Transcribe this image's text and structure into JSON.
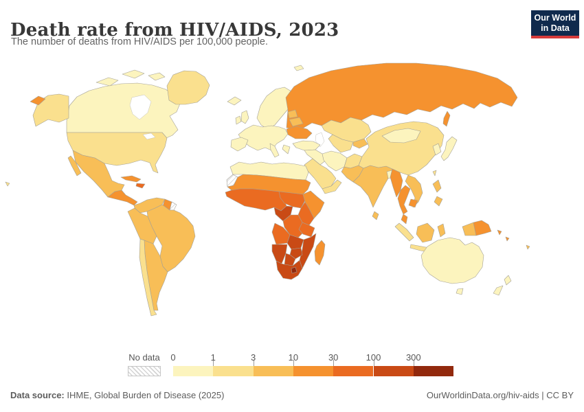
{
  "header": {
    "title": "Death rate from HIV/AIDS, 2023",
    "subtitle": "The number of deaths from HIV/AIDS per 100,000 people."
  },
  "logo": {
    "line1": "Our World",
    "line2": "in Data",
    "bg_color": "#102a4d",
    "accent_color": "#d73b3b"
  },
  "footer": {
    "source_label": "Data source:",
    "source_text": " IHME, Global Burden of Disease (2025)",
    "credit": "OurWorldinData.org/hiv-aids | CC BY"
  },
  "chart_data": {
    "type": "choropleth_map",
    "title": "Death rate from HIV/AIDS, 2023",
    "unit": "deaths from HIV/AIDS per 100,000 people",
    "year": 2023,
    "legend": {
      "no_data_label": "No data",
      "ticks": [
        "0",
        "1",
        "3",
        "10",
        "30",
        "100",
        "300"
      ],
      "tick_values": [
        0,
        1,
        3,
        10,
        30,
        100,
        300
      ],
      "scale": "log-binned, open-ended above 300",
      "colors": [
        "#FCF4BE",
        "#FAE08E",
        "#F8BE57",
        "#F5922F",
        "#EA6B21",
        "#C94A15",
        "#92290D"
      ],
      "no_data_pattern": "gray diagonal hatch"
    },
    "bin_meaning": [
      "0-1",
      "1-3",
      "3-10",
      "10-30",
      "30-100",
      "100-300",
      "300+"
    ],
    "regions": [
      {
        "id": "canada",
        "name": "Canada",
        "bin": 0
      },
      {
        "id": "arctic-islands",
        "name": "Canadian Arctic Archipelago",
        "bin": 0
      },
      {
        "id": "alaska",
        "name": "United States (Alaska)",
        "bin": 1
      },
      {
        "id": "usa",
        "name": "United States",
        "bin": 1
      },
      {
        "id": "hawaii",
        "name": "United States (Hawaii)",
        "bin": 1
      },
      {
        "id": "greenland",
        "name": "Greenland",
        "bin": 1
      },
      {
        "id": "chukotka",
        "name": "Russia (far east)",
        "bin": 3
      },
      {
        "id": "sakhalin",
        "name": "Russia (Sakhalin)",
        "bin": 3
      },
      {
        "id": "mexico",
        "name": "Mexico",
        "bin": 2
      },
      {
        "id": "central-america",
        "name": "Central America",
        "bin": 3
      },
      {
        "id": "cuba",
        "name": "Cuba",
        "bin": 3
      },
      {
        "id": "hispaniola",
        "name": "Haiti / Dominican Republic",
        "bin": 4
      },
      {
        "id": "colombia-venezuela",
        "name": "Colombia / Venezuela",
        "bin": 2
      },
      {
        "id": "guyanas",
        "name": "Guyana / Suriname",
        "bin": 3
      },
      {
        "id": "french-guiana",
        "name": "French Guiana",
        "bin": null
      },
      {
        "id": "brazil",
        "name": "Brazil",
        "bin": 2
      },
      {
        "id": "peru-bolivia",
        "name": "Ecuador / Peru / Bolivia",
        "bin": 2
      },
      {
        "id": "chile",
        "name": "Chile",
        "bin": 1
      },
      {
        "id": "argentina",
        "name": "Argentina",
        "bin": 2
      },
      {
        "id": "iceland",
        "name": "Iceland",
        "bin": 0
      },
      {
        "id": "uk",
        "name": "United Kingdom",
        "bin": 0
      },
      {
        "id": "ireland",
        "name": "Ireland",
        "bin": 0
      },
      {
        "id": "scandinavia",
        "name": "Scandinavia",
        "bin": 0
      },
      {
        "id": "svalbard",
        "name": "Svalbard",
        "bin": 0
      },
      {
        "id": "europe",
        "name": "Western & Central Europe",
        "bin": 0
      },
      {
        "id": "iberia",
        "name": "Spain / Portugal",
        "bin": 0
      },
      {
        "id": "italy",
        "name": "Italy",
        "bin": 0
      },
      {
        "id": "greece",
        "name": "Greece / Balkans",
        "bin": 0
      },
      {
        "id": "baltics",
        "name": "Baltic states",
        "bin": 2
      },
      {
        "id": "belarus",
        "name": "Belarus",
        "bin": 2
      },
      {
        "id": "ukraine",
        "name": "Ukraine",
        "bin": 3
      },
      {
        "id": "russia",
        "name": "Russia",
        "bin": 3
      },
      {
        "id": "kazakhstan",
        "name": "Kazakhstan",
        "bin": 1
      },
      {
        "id": "central-asia",
        "name": "Uzbekistan / Turkmenistan",
        "bin": 1
      },
      {
        "id": "tajikistan",
        "name": "Tajikistan / Kyrgyzstan",
        "bin": 2
      },
      {
        "id": "turkey",
        "name": "Turkey",
        "bin": 0
      },
      {
        "id": "syria-iraq",
        "name": "Syria / Iraq",
        "bin": 0
      },
      {
        "id": "iran",
        "name": "Iran",
        "bin": 0
      },
      {
        "id": "saudi",
        "name": "Saudi Arabia",
        "bin": 1
      },
      {
        "id": "yemen-oman",
        "name": "Yemen / Oman",
        "bin": 1
      },
      {
        "id": "afghanistan",
        "name": "Afghanistan",
        "bin": 1
      },
      {
        "id": "pakistan",
        "name": "Pakistan",
        "bin": 2
      },
      {
        "id": "india",
        "name": "India",
        "bin": 2
      },
      {
        "id": "bangladesh",
        "name": "Bangladesh",
        "bin": 0
      },
      {
        "id": "sri-lanka",
        "name": "Sri Lanka",
        "bin": 2
      },
      {
        "id": "china",
        "name": "China",
        "bin": 1
      },
      {
        "id": "mongolia",
        "name": "Mongolia",
        "bin": 0
      },
      {
        "id": "korea",
        "name": "South Korea",
        "bin": 0
      },
      {
        "id": "japan",
        "name": "Japan",
        "bin": 0
      },
      {
        "id": "taiwan",
        "name": "Taiwan",
        "bin": 1
      },
      {
        "id": "myanmar",
        "name": "Myanmar",
        "bin": 3
      },
      {
        "id": "thailand",
        "name": "Thailand",
        "bin": 3
      },
      {
        "id": "laos-vietnam",
        "name": "Laos / Vietnam",
        "bin": 2
      },
      {
        "id": "cambodia",
        "name": "Cambodia",
        "bin": 3
      },
      {
        "id": "malaysia",
        "name": "Malaysia (peninsular)",
        "bin": 3
      },
      {
        "id": "sumatra",
        "name": "Indonesia (Sumatra)",
        "bin": 1
      },
      {
        "id": "java",
        "name": "Indonesia (Java)",
        "bin": 1
      },
      {
        "id": "borneo",
        "name": "Borneo",
        "bin": 2
      },
      {
        "id": "sulawesi",
        "name": "Indonesia (Sulawesi)",
        "bin": 2
      },
      {
        "id": "philippines",
        "name": "Philippines",
        "bin": 2
      },
      {
        "id": "papua-indonesia",
        "name": "Indonesia (Papua)",
        "bin": 2
      },
      {
        "id": "png",
        "name": "Papua New Guinea",
        "bin": 3
      },
      {
        "id": "solomons",
        "name": "Solomon Islands",
        "bin": 3
      },
      {
        "id": "fiji",
        "name": "Fiji",
        "bin": 2
      },
      {
        "id": "australia",
        "name": "Australia",
        "bin": 0
      },
      {
        "id": "tasmania",
        "name": "Australia (Tasmania)",
        "bin": 0
      },
      {
        "id": "new-zealand",
        "name": "New Zealand",
        "bin": 0
      },
      {
        "id": "north-africa",
        "name": "Morocco / Algeria / Libya / Egypt",
        "bin": 0
      },
      {
        "id": "western-sahara",
        "name": "Western Sahara",
        "bin": null
      },
      {
        "id": "sahel",
        "name": "Mauritania / Mali / Niger / Chad / Sudan",
        "bin": 3
      },
      {
        "id": "west-africa",
        "name": "West Africa (Senegal to Nigeria)",
        "bin": 4
      },
      {
        "id": "central-africa",
        "name": "Cameroon / CAR / South Sudan",
        "bin": 4
      },
      {
        "id": "horn",
        "name": "Ethiopia / Eritrea / Somalia",
        "bin": 3
      },
      {
        "id": "kenya-uganda",
        "name": "Uganda / Kenya",
        "bin": 4
      },
      {
        "id": "gabon-congo",
        "name": "Gabon / Congo / Eq. Guinea",
        "bin": 5
      },
      {
        "id": "drc",
        "name": "Democratic Republic of Congo",
        "bin": 4
      },
      {
        "id": "tanzania",
        "name": "Tanzania",
        "bin": 4
      },
      {
        "id": "angola",
        "name": "Angola",
        "bin": 4
      },
      {
        "id": "zambia",
        "name": "Zambia",
        "bin": 5
      },
      {
        "id": "mozambique",
        "name": "Mozambique / Malawi",
        "bin": 5
      },
      {
        "id": "zimbabwe",
        "name": "Zimbabwe",
        "bin": 5
      },
      {
        "id": "namibia",
        "name": "Namibia",
        "bin": 5
      },
      {
        "id": "botswana",
        "name": "Botswana",
        "bin": 5
      },
      {
        "id": "south-africa",
        "name": "South Africa",
        "bin": 5
      },
      {
        "id": "lesotho",
        "name": "Lesotho / Eswatini",
        "bin": 6
      },
      {
        "id": "madagascar",
        "name": "Madagascar",
        "bin": 3
      }
    ]
  }
}
